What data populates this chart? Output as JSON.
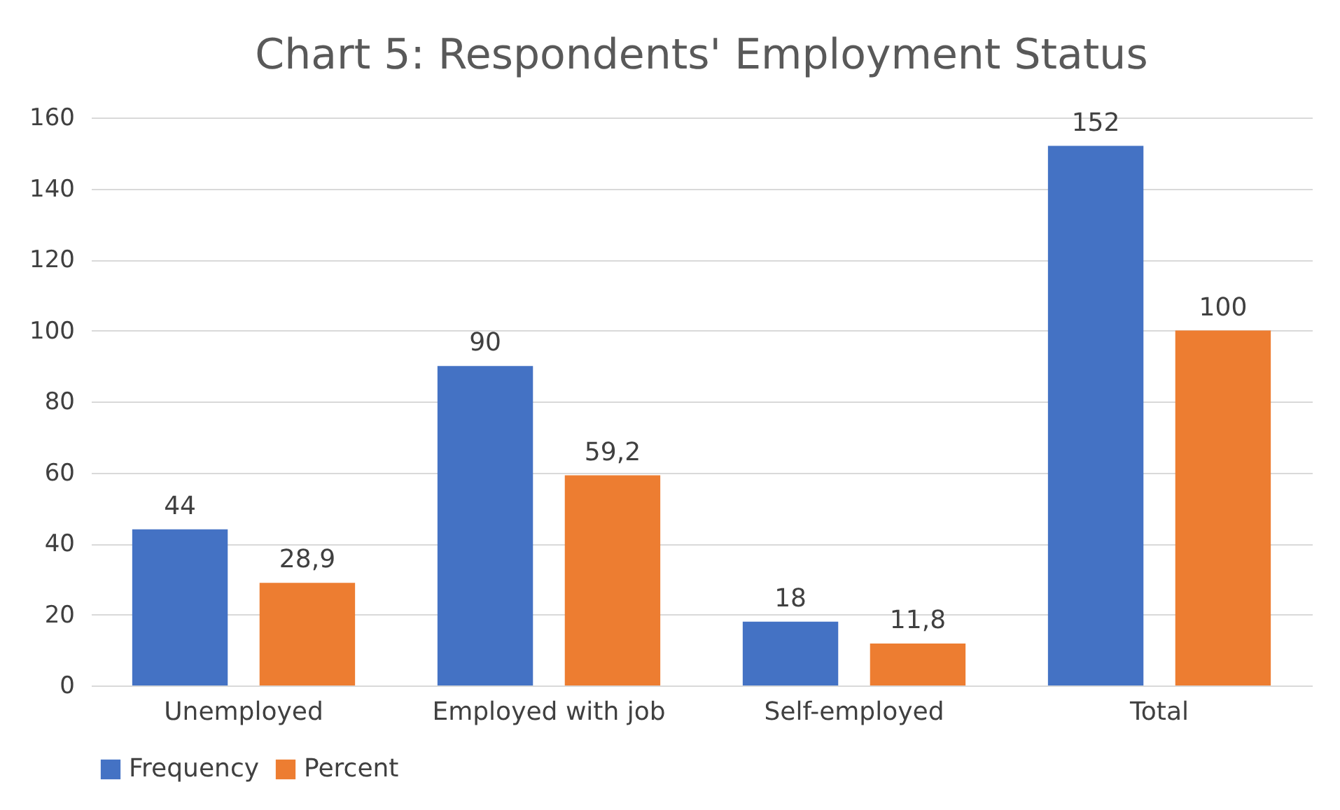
{
  "chart_data": {
    "type": "bar",
    "title": "Chart 5: Respondents' Employment Status",
    "categories": [
      "Unemployed",
      "Employed with job",
      "Self-employed",
      "Total"
    ],
    "series": [
      {
        "name": "Frequency",
        "color": "#4472c4",
        "values": [
          44,
          90,
          18,
          152
        ],
        "value_labels": [
          "44",
          "90",
          "18",
          "152"
        ]
      },
      {
        "name": "Percent",
        "color": "#ed7d31",
        "values": [
          28.9,
          59.2,
          11.8,
          100
        ],
        "value_labels": [
          "28,9",
          "59,2",
          "11,8",
          "100"
        ]
      }
    ],
    "ylim": [
      0,
      160
    ],
    "yticks": [
      0,
      20,
      40,
      60,
      80,
      100,
      120,
      140,
      160
    ],
    "grid": "y",
    "legend": "bottom"
  }
}
